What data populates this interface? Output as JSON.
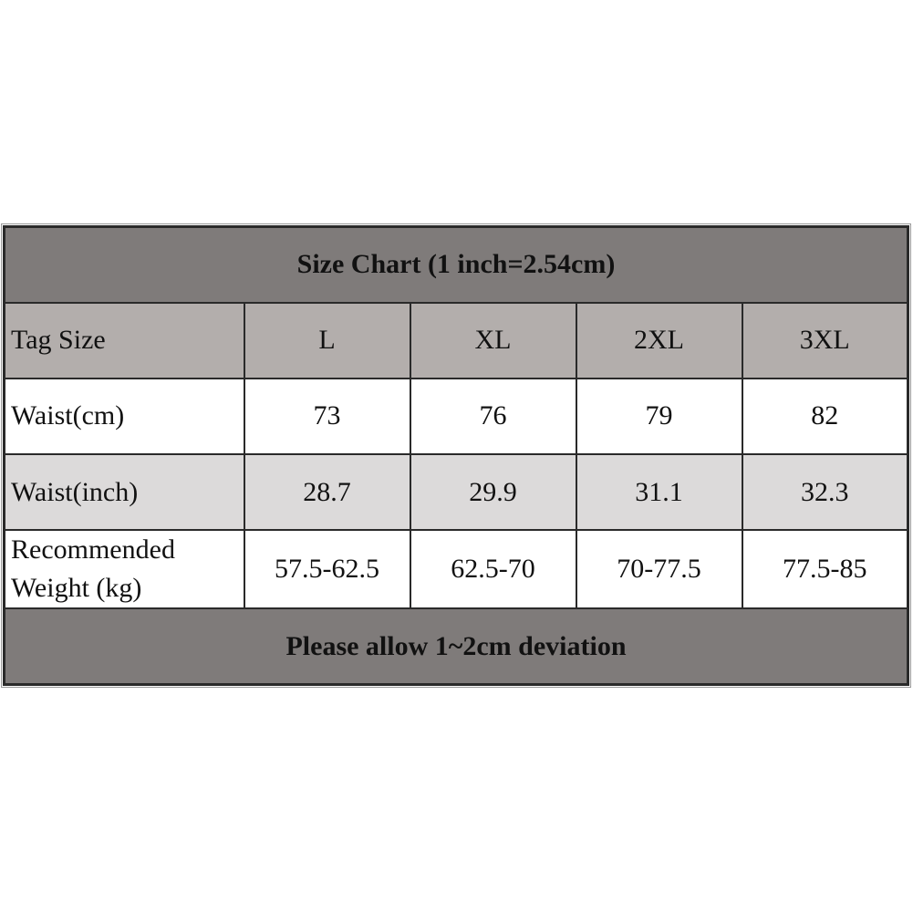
{
  "table": {
    "title": "Size Chart (1 inch=2.54cm)",
    "header": [
      "Tag Size",
      "L",
      "XL",
      "2XL",
      "3XL"
    ],
    "rows": [
      [
        "Waist(cm)",
        "73",
        "76",
        "79",
        "82"
      ],
      [
        "Waist(inch)",
        "28.7",
        "29.9",
        "31.1",
        "32.3"
      ],
      [
        "Recommended Weight (kg)",
        "57.5-62.5",
        "62.5-70",
        "70-77.5",
        "77.5-85"
      ]
    ],
    "footer": "Please allow 1~2cm deviation"
  }
}
